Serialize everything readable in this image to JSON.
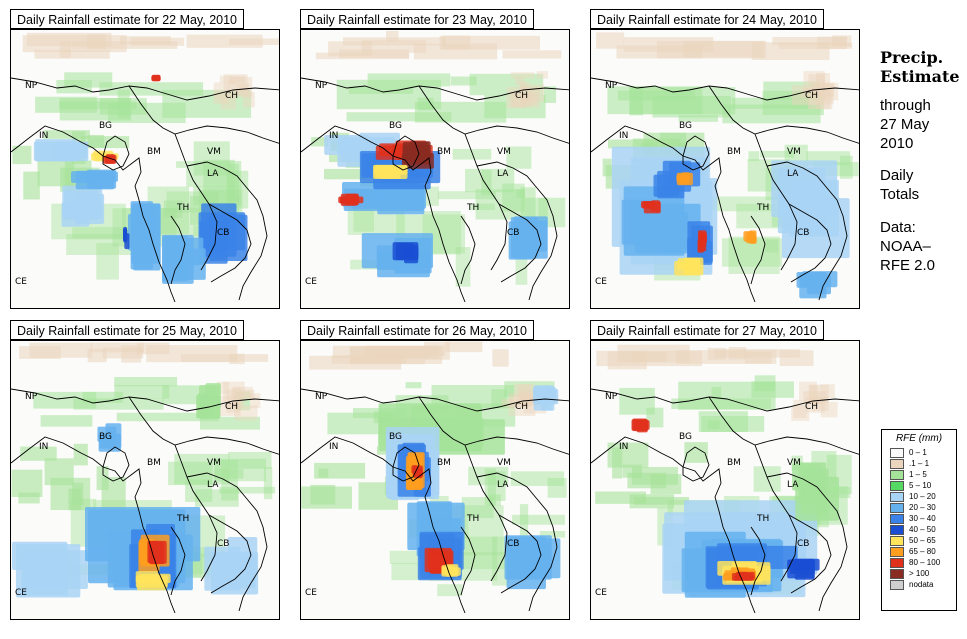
{
  "panels": [
    {
      "title": "Daily Rainfall estimate for  22 May, 2010"
    },
    {
      "title": "Daily Rainfall estimate for  23 May, 2010"
    },
    {
      "title": "Daily Rainfall estimate for  24 May, 2010"
    },
    {
      "title": "Daily Rainfall estimate for  25 May, 2010"
    },
    {
      "title": "Daily Rainfall estimate for  26 May, 2010"
    },
    {
      "title": "Daily Rainfall estimate for  27 May, 2010"
    }
  ],
  "country_labels": [
    "NP",
    "CH",
    "IN",
    "BG",
    "BM",
    "VM",
    "LA",
    "TH",
    "CB",
    "CE"
  ],
  "sidebar": {
    "title_line1": "Precip.",
    "title_line2": "Estimate",
    "through_line1": "through",
    "through_line2": "27 May",
    "through_line3": "2010",
    "daily_line1": "Daily",
    "daily_line2": "Totals",
    "data_line1": "Data:",
    "data_line2": "NOAA–",
    "data_line3": "RFE 2.0"
  },
  "legend": {
    "title": "RFE (mm)",
    "items": [
      {
        "label": "0 – 1",
        "color": "#fafafa"
      },
      {
        "label": ".1 – 1",
        "color": "#ebd5bd"
      },
      {
        "label": "1 – 5",
        "color": "#a6e39a"
      },
      {
        "label": "5 – 10",
        "color": "#55d962"
      },
      {
        "label": "10 – 20",
        "color": "#a9d4f5"
      },
      {
        "label": "20 – 30",
        "color": "#65b1ee"
      },
      {
        "label": "30 – 40",
        "color": "#3a82e8"
      },
      {
        "label": "40 – 50",
        "color": "#1a4ed2"
      },
      {
        "label": "50 – 65",
        "color": "#ffe45c"
      },
      {
        "label": "65 – 80",
        "color": "#ff9e1f"
      },
      {
        "label": "80 – 100",
        "color": "#e0301c"
      },
      {
        "label": "> 100",
        "color": "#8a2c22"
      },
      {
        "label": "nodata",
        "color": "#cfcfcf"
      }
    ]
  }
}
